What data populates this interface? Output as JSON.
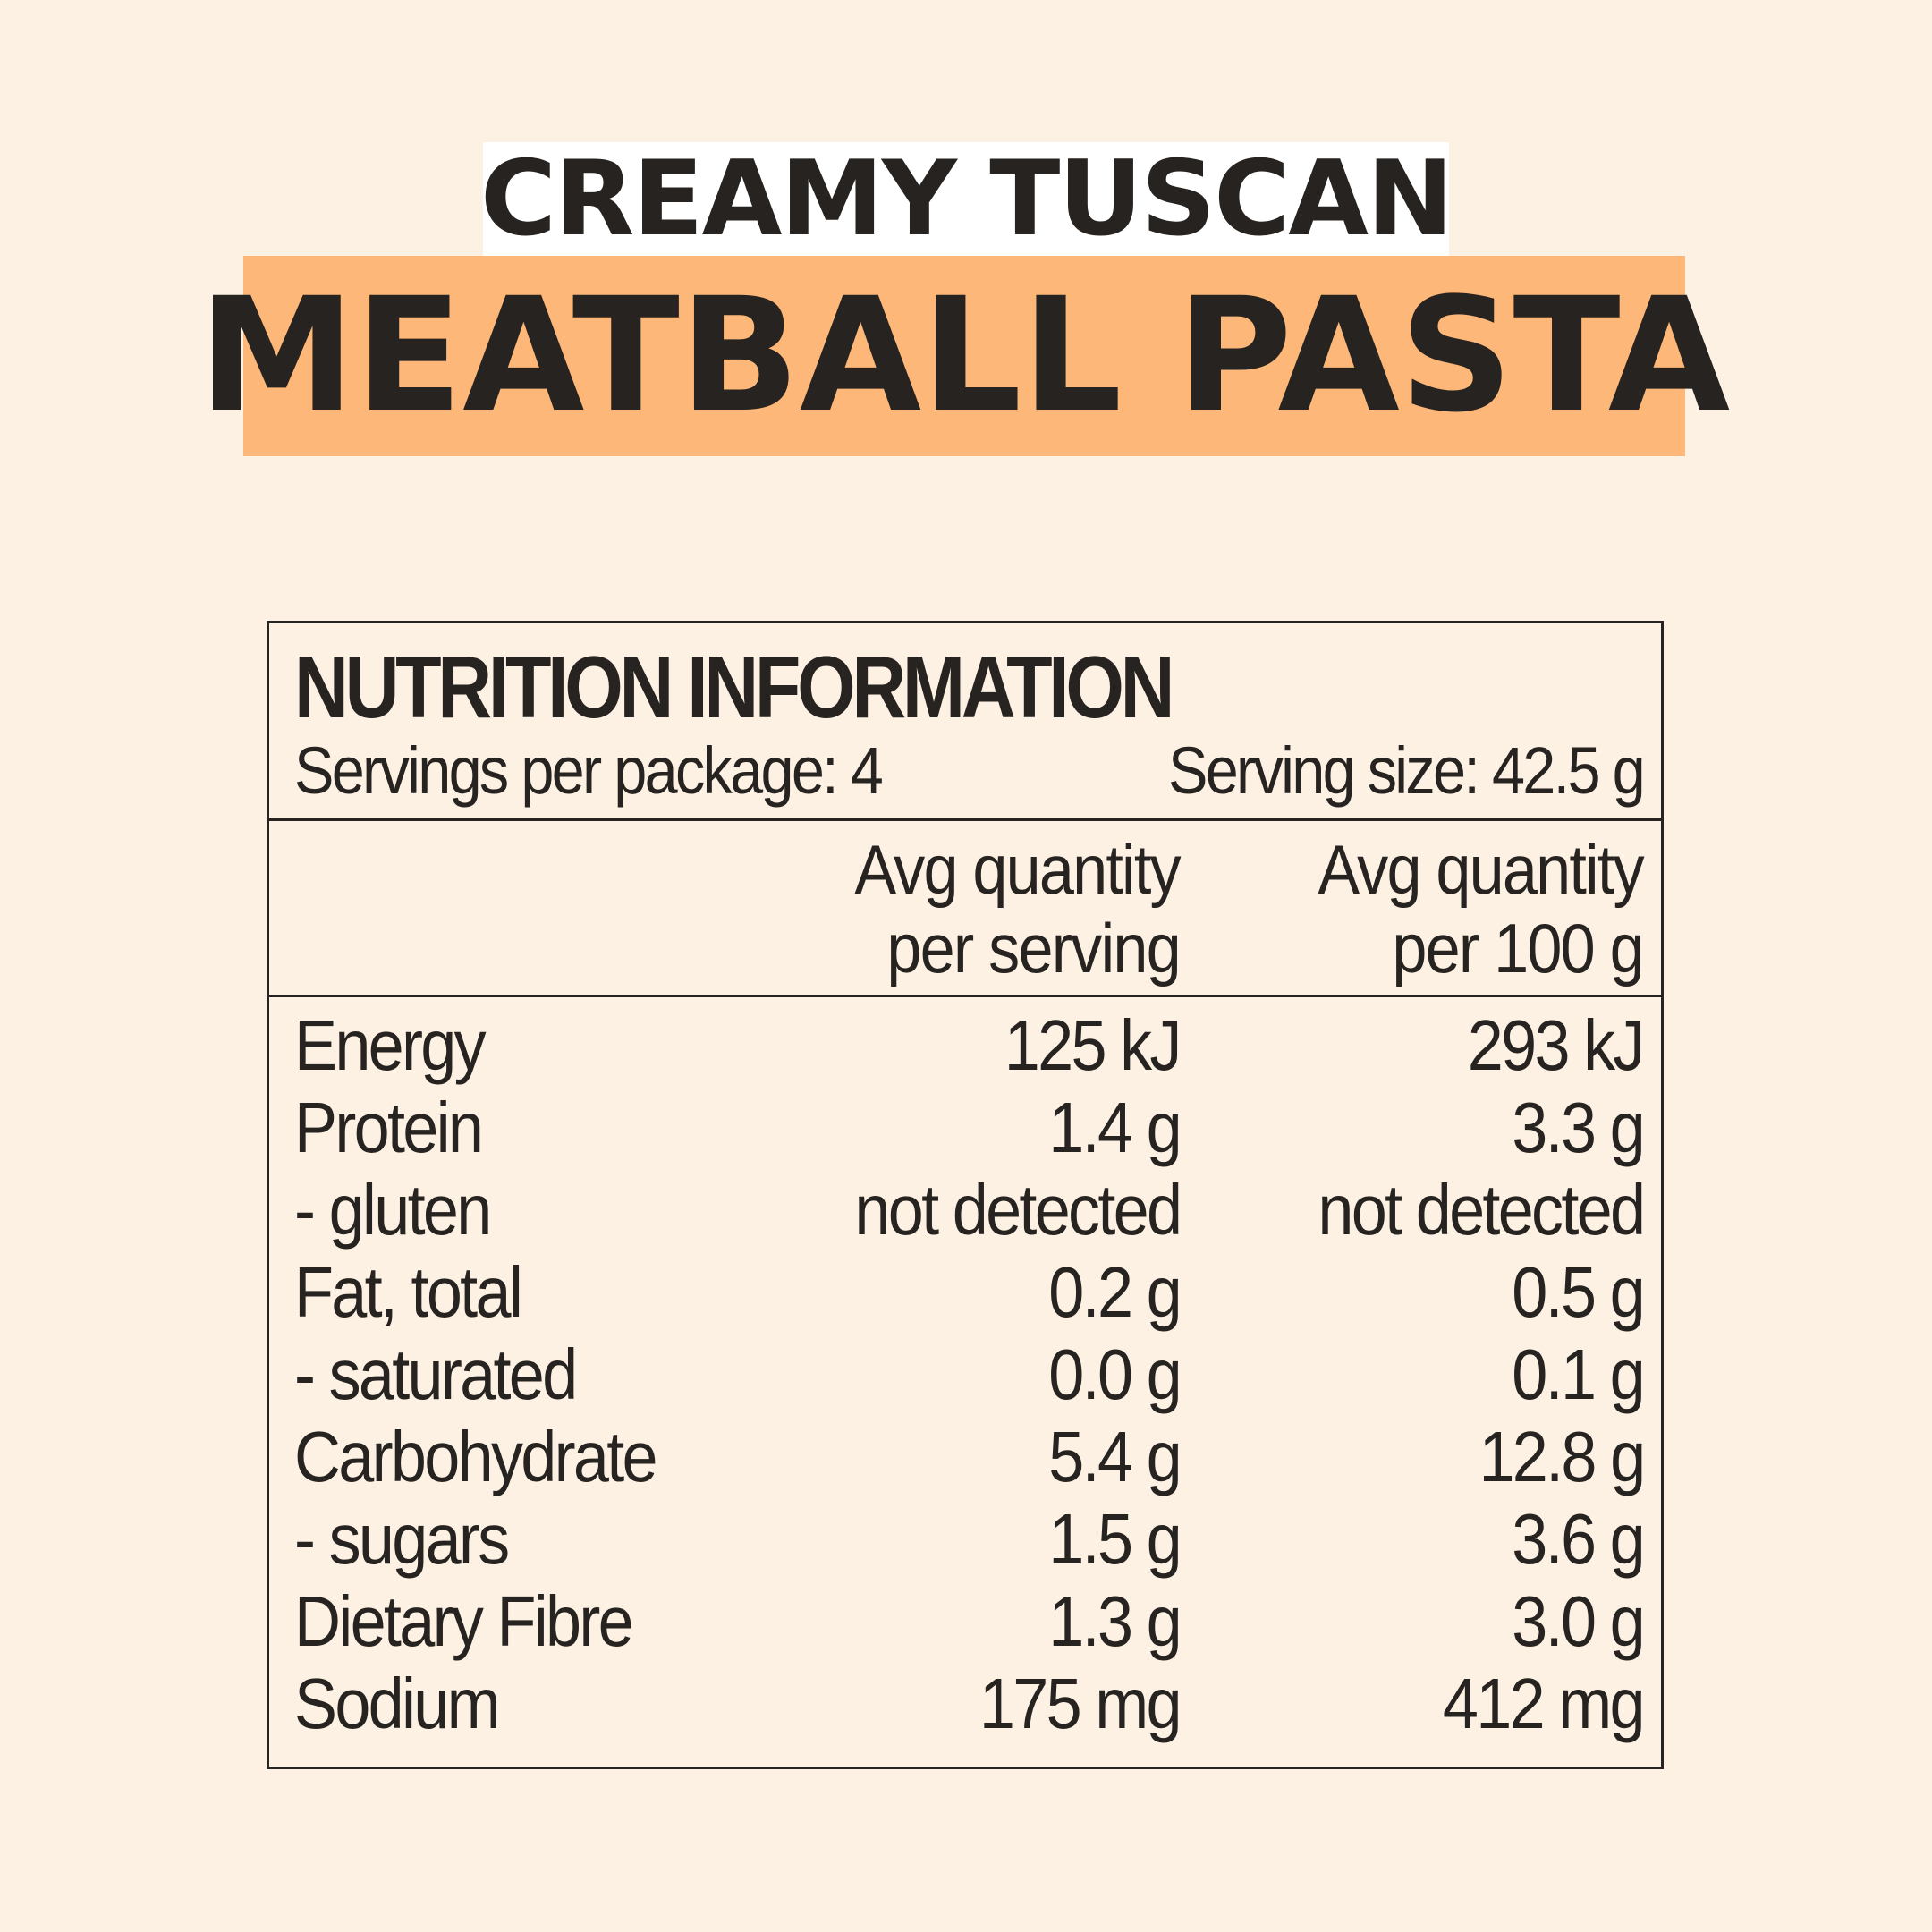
{
  "title": {
    "line1": "CREAMY TUSCAN",
    "line2": "MEATBALL PASTA"
  },
  "nutrition": {
    "heading": "NUTRITION INFORMATION",
    "servings_per_package": "Servings per package: 4",
    "serving_size": "Serving size: 42.5 g",
    "col_serving": [
      "Avg quantity",
      "per serving"
    ],
    "col_100g": [
      "Avg quantity",
      "per 100 g"
    ],
    "rows": [
      {
        "name": "Energy",
        "per_serving": "125 kJ",
        "per_100g": "293 kJ"
      },
      {
        "name": "Protein",
        "per_serving": "1.4 g",
        "per_100g": "3.3 g"
      },
      {
        "name": "- gluten",
        "per_serving": "not detected",
        "per_100g": "not detected"
      },
      {
        "name": "Fat, total",
        "per_serving": "0.2 g",
        "per_100g": "0.5 g"
      },
      {
        "name": "- saturated",
        "per_serving": "0.0 g",
        "per_100g": "0.1 g"
      },
      {
        "name": "Carbohydrate",
        "per_serving": "5.4 g",
        "per_100g": "12.8 g"
      },
      {
        "name": "- sugars",
        "per_serving": "1.5 g",
        "per_100g": "3.6 g"
      },
      {
        "name": "Dietary Fibre",
        "per_serving": "1.3 g",
        "per_100g": "3.0 g"
      },
      {
        "name": "Sodium",
        "per_serving": "175 mg",
        "per_100g": "412 mg"
      }
    ]
  },
  "colors": {
    "background": "#fdf1e3",
    "title_band": "#fdb778",
    "text": "#262320"
  }
}
